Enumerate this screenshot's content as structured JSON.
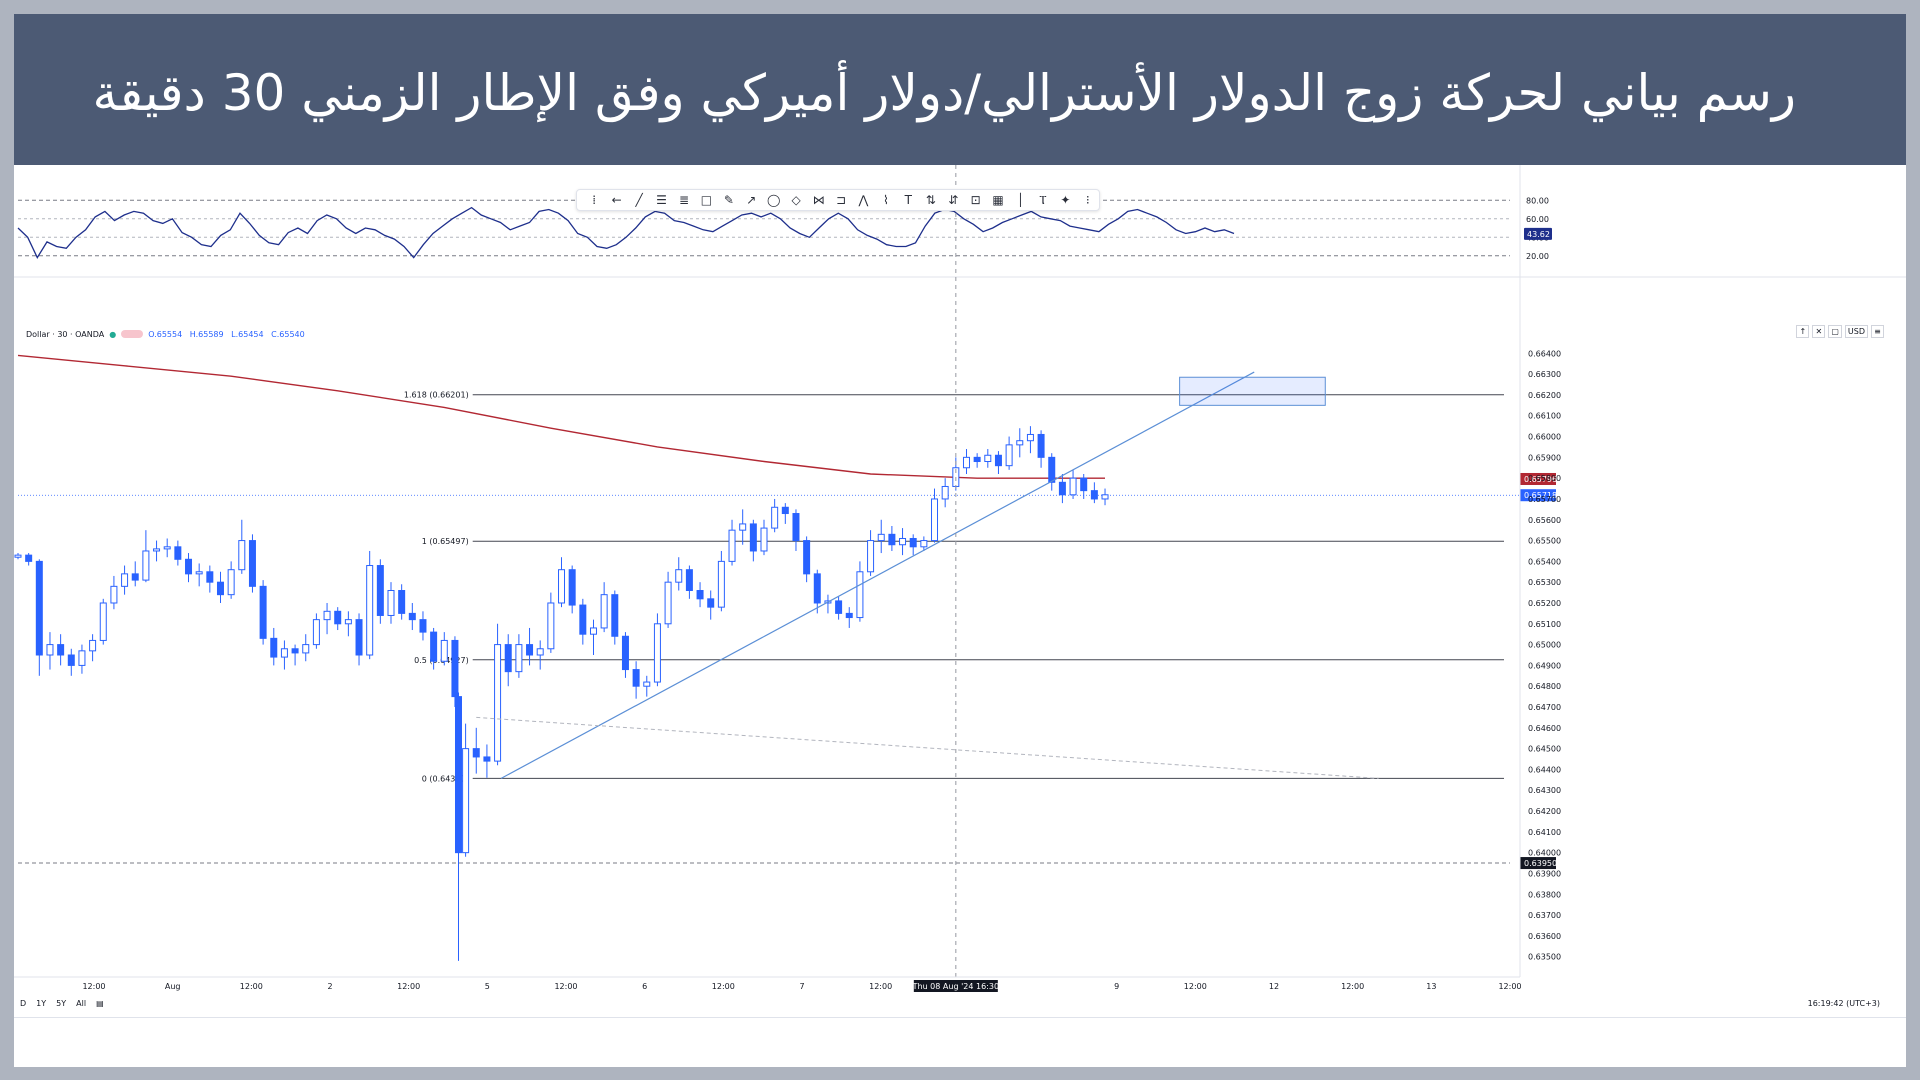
{
  "header": {
    "title": "رسم بياني لحركة زوج الدولار الأسترالي/دولار أميركي وفق الإطار الزمني 30 دقيقة"
  },
  "colors": {
    "header_bg": "#4c5a74",
    "candle": "#2962ff",
    "rsi_line": "#1e2f8c",
    "moving_average": "#b22833",
    "trendline": "#5b8fd6",
    "fib_line": "#434651"
  },
  "toolbar": {
    "tools": [
      {
        "icon": "drag-handle-icon",
        "glyph": "⁞"
      },
      {
        "icon": "arrow-left-icon",
        "glyph": "←"
      },
      {
        "icon": "trendline-icon",
        "glyph": "╱"
      },
      {
        "icon": "fib-retracement-icon",
        "glyph": "☰"
      },
      {
        "icon": "fib-extension-icon",
        "glyph": "≣"
      },
      {
        "icon": "rectangle-icon",
        "glyph": "□"
      },
      {
        "icon": "brush-icon",
        "glyph": "✎"
      },
      {
        "icon": "path-icon",
        "glyph": "↗"
      },
      {
        "icon": "circle-icon",
        "glyph": "◯"
      },
      {
        "icon": "diamond-icon",
        "glyph": "◇"
      },
      {
        "icon": "pattern-icon",
        "glyph": "⋈"
      },
      {
        "icon": "callout-icon",
        "glyph": "⊐"
      },
      {
        "icon": "xabcd-icon",
        "glyph": "⋀"
      },
      {
        "icon": "zigzag-icon",
        "glyph": "⌇"
      },
      {
        "icon": "text-icon",
        "glyph": "T"
      },
      {
        "icon": "long-position-icon",
        "glyph": "⇅"
      },
      {
        "icon": "short-position-icon",
        "glyph": "⇵"
      },
      {
        "icon": "crop-icon",
        "glyph": "⊡"
      },
      {
        "icon": "table-icon",
        "glyph": "▦"
      },
      {
        "icon": "vertical-line-icon",
        "glyph": "│"
      },
      {
        "icon": "cross-line-icon",
        "glyph": "Ⲧ"
      },
      {
        "icon": "magic-icon",
        "glyph": "✦"
      },
      {
        "icon": "more-icon",
        "glyph": "⁝"
      }
    ]
  },
  "legend": {
    "symbol": "Dollar · 30 · OANDA",
    "open": "O.65554",
    "high": "H.65589",
    "low": "L.65454",
    "close": "C.65540"
  },
  "top_controls": [
    "↑",
    "✕",
    "▢",
    "USD",
    "≡"
  ],
  "bottom_bar": {
    "ranges": [
      "D",
      "1Y",
      "5Y",
      "All"
    ],
    "clock": "16:19:42 (UTC+3)"
  },
  "chart_data": {
    "type": "candlestick",
    "symbol": "Dollar · 30 · OANDA",
    "interval": "30",
    "price_axis": {
      "ticks": [
        "0.66400",
        "0.66300",
        "0.66200",
        "0.66100",
        "0.66000",
        "0.65900",
        "0.65800",
        "0.65700",
        "0.65600",
        "0.65500",
        "0.65400",
        "0.65300",
        "0.65200",
        "0.65100",
        "0.65000",
        "0.64900",
        "0.64800",
        "0.64700",
        "0.64600",
        "0.64500",
        "0.64400",
        "0.64300",
        "0.64200",
        "0.64100",
        "0.64000",
        "0.63900",
        "0.63800",
        "0.63700",
        "0.63600",
        "0.63500"
      ],
      "range": [
        0.6346,
        0.6644
      ],
      "current_price": "0.65718",
      "ma_value": "0.65796",
      "alert_price": "0.63950",
      "currency": "USD"
    },
    "time_axis": {
      "labels": [
        "12:00",
        "Aug",
        "12:00",
        "2",
        "12:00",
        "5",
        "12:00",
        "6",
        "12:00",
        "7",
        "12:00",
        "8",
        "Thu 08 Aug '24  16:30",
        "9",
        "12:00",
        "12",
        "12:00",
        "13",
        "12:00"
      ]
    },
    "candles": [
      {
        "t": 0,
        "o": 0.6542,
        "h": 0.6544,
        "l": 0.6541,
        "c": 0.6543
      },
      {
        "t": 3,
        "o": 0.6543,
        "h": 0.6544,
        "l": 0.6538,
        "c": 0.654
      },
      {
        "t": 6,
        "o": 0.654,
        "h": 0.6541,
        "l": 0.6485,
        "c": 0.6495
      },
      {
        "t": 9,
        "o": 0.6495,
        "h": 0.6506,
        "l": 0.6488,
        "c": 0.65
      },
      {
        "t": 12,
        "o": 0.65,
        "h": 0.6505,
        "l": 0.649,
        "c": 0.6495
      },
      {
        "t": 15,
        "o": 0.6495,
        "h": 0.6498,
        "l": 0.6485,
        "c": 0.649
      },
      {
        "t": 18,
        "o": 0.649,
        "h": 0.65,
        "l": 0.6486,
        "c": 0.6497
      },
      {
        "t": 21,
        "o": 0.6497,
        "h": 0.6505,
        "l": 0.6492,
        "c": 0.6502
      },
      {
        "t": 24,
        "o": 0.6502,
        "h": 0.6522,
        "l": 0.65,
        "c": 0.652
      },
      {
        "t": 27,
        "o": 0.652,
        "h": 0.6533,
        "l": 0.6517,
        "c": 0.6528
      },
      {
        "t": 30,
        "o": 0.6528,
        "h": 0.6538,
        "l": 0.6524,
        "c": 0.6534
      },
      {
        "t": 33,
        "o": 0.6534,
        "h": 0.654,
        "l": 0.6528,
        "c": 0.6531
      },
      {
        "t": 36,
        "o": 0.6531,
        "h": 0.6555,
        "l": 0.653,
        "c": 0.6545
      },
      {
        "t": 39,
        "o": 0.6545,
        "h": 0.655,
        "l": 0.654,
        "c": 0.6546
      },
      {
        "t": 42,
        "o": 0.6546,
        "h": 0.6551,
        "l": 0.6542,
        "c": 0.6547
      },
      {
        "t": 45,
        "o": 0.6547,
        "h": 0.655,
        "l": 0.6538,
        "c": 0.6541
      },
      {
        "t": 48,
        "o": 0.6541,
        "h": 0.6544,
        "l": 0.653,
        "c": 0.6534
      },
      {
        "t": 51,
        "o": 0.6534,
        "h": 0.6539,
        "l": 0.6528,
        "c": 0.6535
      },
      {
        "t": 54,
        "o": 0.6535,
        "h": 0.6538,
        "l": 0.6525,
        "c": 0.653
      },
      {
        "t": 57,
        "o": 0.653,
        "h": 0.6535,
        "l": 0.652,
        "c": 0.6524
      },
      {
        "t": 60,
        "o": 0.6524,
        "h": 0.654,
        "l": 0.6522,
        "c": 0.6536
      },
      {
        "t": 63,
        "o": 0.6536,
        "h": 0.656,
        "l": 0.6534,
        "c": 0.655
      },
      {
        "t": 66,
        "o": 0.655,
        "h": 0.6553,
        "l": 0.6525,
        "c": 0.6528
      },
      {
        "t": 69,
        "o": 0.6528,
        "h": 0.6531,
        "l": 0.65,
        "c": 0.6503
      },
      {
        "t": 72,
        "o": 0.6503,
        "h": 0.6508,
        "l": 0.649,
        "c": 0.6494
      },
      {
        "t": 75,
        "o": 0.6494,
        "h": 0.6502,
        "l": 0.6488,
        "c": 0.6498
      },
      {
        "t": 78,
        "o": 0.6498,
        "h": 0.65,
        "l": 0.649,
        "c": 0.6496
      },
      {
        "t": 81,
        "o": 0.6496,
        "h": 0.6505,
        "l": 0.6492,
        "c": 0.65
      },
      {
        "t": 84,
        "o": 0.65,
        "h": 0.6515,
        "l": 0.6498,
        "c": 0.6512
      },
      {
        "t": 87,
        "o": 0.6512,
        "h": 0.652,
        "l": 0.6505,
        "c": 0.6516
      },
      {
        "t": 90,
        "o": 0.6516,
        "h": 0.6518,
        "l": 0.6507,
        "c": 0.651
      },
      {
        "t": 93,
        "o": 0.651,
        "h": 0.6516,
        "l": 0.6504,
        "c": 0.6512
      },
      {
        "t": 96,
        "o": 0.6512,
        "h": 0.6515,
        "l": 0.649,
        "c": 0.6495
      },
      {
        "t": 99,
        "o": 0.6495,
        "h": 0.6545,
        "l": 0.6493,
        "c": 0.6538
      },
      {
        "t": 102,
        "o": 0.6538,
        "h": 0.6541,
        "l": 0.651,
        "c": 0.6514
      },
      {
        "t": 105,
        "o": 0.6514,
        "h": 0.653,
        "l": 0.651,
        "c": 0.6526
      },
      {
        "t": 108,
        "o": 0.6526,
        "h": 0.6529,
        "l": 0.6512,
        "c": 0.6515
      },
      {
        "t": 111,
        "o": 0.6515,
        "h": 0.652,
        "l": 0.6507,
        "c": 0.6512
      },
      {
        "t": 114,
        "o": 0.6512,
        "h": 0.6516,
        "l": 0.6502,
        "c": 0.6506
      },
      {
        "t": 117,
        "o": 0.6506,
        "h": 0.6508,
        "l": 0.6488,
        "c": 0.6492
      },
      {
        "t": 120,
        "o": 0.6492,
        "h": 0.6506,
        "l": 0.649,
        "c": 0.6502
      },
      {
        "t": 123,
        "o": 0.6502,
        "h": 0.6504,
        "l": 0.647,
        "c": 0.6475
      },
      {
        "t": 124,
        "o": 0.6475,
        "h": 0.6477,
        "l": 0.6348,
        "c": 0.64
      },
      {
        "t": 126,
        "o": 0.64,
        "h": 0.6462,
        "l": 0.6398,
        "c": 0.645
      },
      {
        "t": 129,
        "o": 0.645,
        "h": 0.646,
        "l": 0.6438,
        "c": 0.6446
      },
      {
        "t": 132,
        "o": 0.6446,
        "h": 0.6452,
        "l": 0.6436,
        "c": 0.6444
      },
      {
        "t": 135,
        "o": 0.6444,
        "h": 0.651,
        "l": 0.6442,
        "c": 0.65
      },
      {
        "t": 138,
        "o": 0.65,
        "h": 0.6505,
        "l": 0.648,
        "c": 0.6487
      },
      {
        "t": 141,
        "o": 0.6487,
        "h": 0.6505,
        "l": 0.6484,
        "c": 0.65
      },
      {
        "t": 144,
        "o": 0.65,
        "h": 0.6508,
        "l": 0.649,
        "c": 0.6495
      },
      {
        "t": 147,
        "o": 0.6495,
        "h": 0.6502,
        "l": 0.6488,
        "c": 0.6498
      },
      {
        "t": 150,
        "o": 0.6498,
        "h": 0.6525,
        "l": 0.6496,
        "c": 0.652
      },
      {
        "t": 153,
        "o": 0.652,
        "h": 0.6542,
        "l": 0.6518,
        "c": 0.6536
      },
      {
        "t": 156,
        "o": 0.6536,
        "h": 0.6538,
        "l": 0.6515,
        "c": 0.6519
      },
      {
        "t": 159,
        "o": 0.6519,
        "h": 0.6522,
        "l": 0.65,
        "c": 0.6505
      },
      {
        "t": 162,
        "o": 0.6505,
        "h": 0.6512,
        "l": 0.6495,
        "c": 0.6508
      },
      {
        "t": 165,
        "o": 0.6508,
        "h": 0.653,
        "l": 0.6506,
        "c": 0.6524
      },
      {
        "t": 168,
        "o": 0.6524,
        "h": 0.6526,
        "l": 0.65,
        "c": 0.6504
      },
      {
        "t": 171,
        "o": 0.6504,
        "h": 0.6506,
        "l": 0.6484,
        "c": 0.6488
      },
      {
        "t": 174,
        "o": 0.6488,
        "h": 0.6492,
        "l": 0.6474,
        "c": 0.648
      },
      {
        "t": 177,
        "o": 0.648,
        "h": 0.6485,
        "l": 0.6475,
        "c": 0.6482
      },
      {
        "t": 180,
        "o": 0.6482,
        "h": 0.6515,
        "l": 0.648,
        "c": 0.651
      },
      {
        "t": 183,
        "o": 0.651,
        "h": 0.6535,
        "l": 0.6508,
        "c": 0.653
      },
      {
        "t": 186,
        "o": 0.653,
        "h": 0.6542,
        "l": 0.6526,
        "c": 0.6536
      },
      {
        "t": 189,
        "o": 0.6536,
        "h": 0.6538,
        "l": 0.6522,
        "c": 0.6526
      },
      {
        "t": 192,
        "o": 0.6526,
        "h": 0.653,
        "l": 0.6518,
        "c": 0.6522
      },
      {
        "t": 195,
        "o": 0.6522,
        "h": 0.6526,
        "l": 0.6512,
        "c": 0.6518
      },
      {
        "t": 198,
        "o": 0.6518,
        "h": 0.6545,
        "l": 0.6516,
        "c": 0.654
      },
      {
        "t": 201,
        "o": 0.654,
        "h": 0.656,
        "l": 0.6538,
        "c": 0.6555
      },
      {
        "t": 204,
        "o": 0.6555,
        "h": 0.6565,
        "l": 0.6548,
        "c": 0.6558
      },
      {
        "t": 207,
        "o": 0.6558,
        "h": 0.656,
        "l": 0.654,
        "c": 0.6545
      },
      {
        "t": 210,
        "o": 0.6545,
        "h": 0.656,
        "l": 0.6543,
        "c": 0.6556
      },
      {
        "t": 213,
        "o": 0.6556,
        "h": 0.657,
        "l": 0.6554,
        "c": 0.6566
      },
      {
        "t": 216,
        "o": 0.6566,
        "h": 0.6568,
        "l": 0.6558,
        "c": 0.6563
      },
      {
        "t": 219,
        "o": 0.6563,
        "h": 0.6565,
        "l": 0.6545,
        "c": 0.655
      },
      {
        "t": 222,
        "o": 0.655,
        "h": 0.6552,
        "l": 0.653,
        "c": 0.6534
      },
      {
        "t": 225,
        "o": 0.6534,
        "h": 0.6536,
        "l": 0.6515,
        "c": 0.652
      },
      {
        "t": 228,
        "o": 0.652,
        "h": 0.6524,
        "l": 0.6515,
        "c": 0.6521
      },
      {
        "t": 231,
        "o": 0.6521,
        "h": 0.6523,
        "l": 0.6512,
        "c": 0.6515
      },
      {
        "t": 234,
        "o": 0.6515,
        "h": 0.6518,
        "l": 0.6508,
        "c": 0.6513
      },
      {
        "t": 237,
        "o": 0.6513,
        "h": 0.654,
        "l": 0.6511,
        "c": 0.6535
      },
      {
        "t": 240,
        "o": 0.6535,
        "h": 0.6555,
        "l": 0.6533,
        "c": 0.655
      },
      {
        "t": 243,
        "o": 0.655,
        "h": 0.656,
        "l": 0.6544,
        "c": 0.6553
      },
      {
        "t": 246,
        "o": 0.6553,
        "h": 0.6557,
        "l": 0.6545,
        "c": 0.6548
      },
      {
        "t": 249,
        "o": 0.6548,
        "h": 0.6556,
        "l": 0.6543,
        "c": 0.6551
      },
      {
        "t": 252,
        "o": 0.6551,
        "h": 0.6553,
        "l": 0.6543,
        "c": 0.6547
      },
      {
        "t": 255,
        "o": 0.6547,
        "h": 0.6552,
        "l": 0.6545,
        "c": 0.655
      },
      {
        "t": 258,
        "o": 0.655,
        "h": 0.6575,
        "l": 0.6549,
        "c": 0.657
      },
      {
        "t": 261,
        "o": 0.657,
        "h": 0.658,
        "l": 0.6566,
        "c": 0.6576
      },
      {
        "t": 264,
        "o": 0.6576,
        "h": 0.659,
        "l": 0.6574,
        "c": 0.6585
      },
      {
        "t": 267,
        "o": 0.6585,
        "h": 0.6594,
        "l": 0.6582,
        "c": 0.659
      },
      {
        "t": 270,
        "o": 0.659,
        "h": 0.6592,
        "l": 0.6585,
        "c": 0.6588
      },
      {
        "t": 273,
        "o": 0.6588,
        "h": 0.6594,
        "l": 0.6585,
        "c": 0.6591
      },
      {
        "t": 276,
        "o": 0.6591,
        "h": 0.6593,
        "l": 0.6582,
        "c": 0.6586
      },
      {
        "t": 279,
        "o": 0.6586,
        "h": 0.66,
        "l": 0.6584,
        "c": 0.6596
      },
      {
        "t": 282,
        "o": 0.6596,
        "h": 0.6604,
        "l": 0.659,
        "c": 0.6598
      },
      {
        "t": 285,
        "o": 0.6598,
        "h": 0.6605,
        "l": 0.6592,
        "c": 0.6601
      },
      {
        "t": 288,
        "o": 0.6601,
        "h": 0.6603,
        "l": 0.6585,
        "c": 0.659
      },
      {
        "t": 291,
        "o": 0.659,
        "h": 0.6592,
        "l": 0.6574,
        "c": 0.6578
      },
      {
        "t": 294,
        "o": 0.6578,
        "h": 0.6582,
        "l": 0.6568,
        "c": 0.6572
      },
      {
        "t": 297,
        "o": 0.6572,
        "h": 0.6584,
        "l": 0.657,
        "c": 0.658
      },
      {
        "t": 300,
        "o": 0.658,
        "h": 0.6582,
        "l": 0.657,
        "c": 0.6574
      },
      {
        "t": 303,
        "o": 0.6574,
        "h": 0.6578,
        "l": 0.6568,
        "c": 0.657
      },
      {
        "t": 306,
        "o": 0.657,
        "h": 0.6575,
        "l": 0.6567,
        "c": 0.6572
      }
    ],
    "moving_average": {
      "value_label": "0.65796",
      "points": [
        [
          0,
          0.6639
        ],
        [
          30,
          0.6634
        ],
        [
          60,
          0.6629
        ],
        [
          90,
          0.6622
        ],
        [
          120,
          0.6614
        ],
        [
          150,
          0.6604
        ],
        [
          180,
          0.6595
        ],
        [
          210,
          0.6588
        ],
        [
          240,
          0.6582
        ],
        [
          270,
          0.658
        ],
        [
          306,
          0.658
        ]
      ]
    },
    "fibonacci_levels": [
      {
        "label": "1.618 (0.66201)",
        "value": 0.66201
      },
      {
        "label": "1 (0.65497)",
        "value": 0.65497
      },
      {
        "label": "0.5 (0.64927)",
        "value": 0.64927
      },
      {
        "label": "0 (0.64357)",
        "value": 0.64357
      }
    ],
    "trendline": {
      "from": [
        136,
        0.64357
      ],
      "to": [
        348,
        0.6631
      ]
    },
    "dashed_line": {
      "from": [
        129,
        0.6465
      ],
      "to": [
        383,
        0.64357
      ]
    },
    "target_box": {
      "t0": 327,
      "t1": 368,
      "p_top": 0.66285,
      "p_bottom": 0.6615
    },
    "crosshair_time_index": 264,
    "rsi": {
      "levels": [
        "80.00",
        "60.00",
        "40.00",
        "20.00"
      ],
      "value": "43.62",
      "range": [
        10,
        90
      ],
      "values": [
        50,
        40,
        18,
        35,
        30,
        28,
        40,
        48,
        62,
        68,
        58,
        64,
        68,
        66,
        58,
        55,
        60,
        45,
        40,
        32,
        30,
        42,
        48,
        66,
        55,
        42,
        34,
        32,
        45,
        50,
        44,
        58,
        64,
        60,
        50,
        44,
        50,
        48,
        42,
        38,
        30,
        18,
        32,
        44,
        52,
        60,
        66,
        72,
        64,
        60,
        56,
        48,
        52,
        56,
        68,
        70,
        66,
        58,
        44,
        40,
        30,
        28,
        32,
        40,
        50,
        62,
        68,
        66,
        58,
        56,
        52,
        48,
        46,
        52,
        58,
        64,
        66,
        62,
        66,
        60,
        50,
        44,
        40,
        50,
        60,
        66,
        60,
        48,
        42,
        38,
        32,
        30,
        30,
        34,
        52,
        66,
        70,
        68,
        60,
        54,
        46,
        50,
        56,
        60,
        64,
        68,
        62,
        60,
        58,
        52,
        50,
        48,
        46,
        54,
        60,
        68,
        70,
        66,
        62,
        56,
        48,
        44,
        46,
        50,
        46,
        48,
        44
      ]
    }
  }
}
